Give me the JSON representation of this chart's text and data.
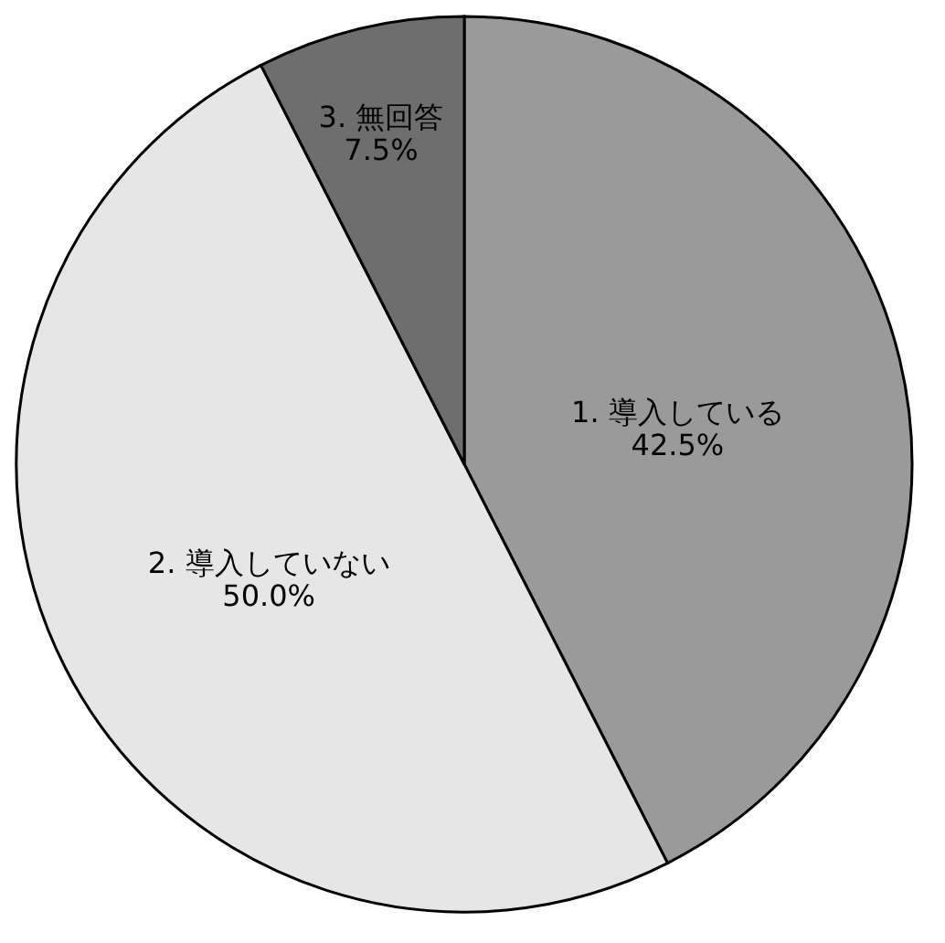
{
  "chart_data": {
    "type": "pie",
    "categories": [
      "1. 導入している",
      "2. 導入していない",
      "3. 無回答"
    ],
    "values": [
      42.5,
      50.0,
      7.5
    ],
    "colors": [
      "#9a9a9a",
      "#e6e6e6",
      "#6e6e6e"
    ],
    "value_labels": [
      "42.5%",
      "50.0%",
      "7.5%"
    ],
    "legend": false
  }
}
